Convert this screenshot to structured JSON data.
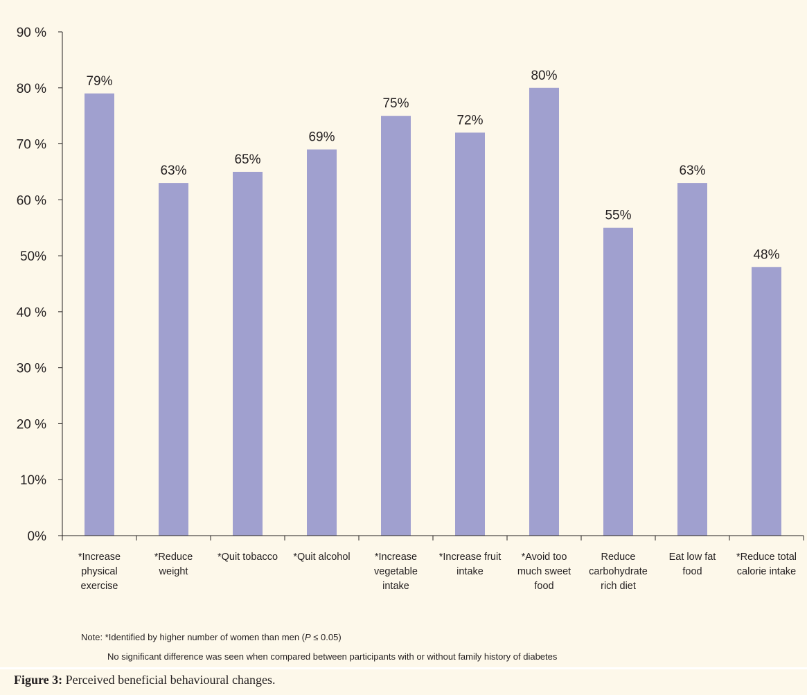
{
  "chart_data": {
    "type": "bar",
    "categories": [
      [
        "*Increase",
        "physical",
        "exercise"
      ],
      [
        "*Reduce",
        "weight"
      ],
      [
        "*Quit tobacco"
      ],
      [
        "*Quit alcohol"
      ],
      [
        "*Increase",
        "vegetable",
        "intake"
      ],
      [
        "*Increase fruit",
        "intake"
      ],
      [
        "*Avoid too",
        "much sweet",
        "food"
      ],
      [
        "Reduce",
        "carbohydrate",
        "rich diet"
      ],
      [
        "Eat low fat",
        "food"
      ],
      [
        "*Reduce total",
        "calorie intake"
      ]
    ],
    "values": [
      79,
      63,
      65,
      69,
      75,
      72,
      80,
      55,
      63,
      48
    ],
    "value_labels": [
      "79%",
      "63%",
      "65%",
      "69%",
      "75%",
      "72%",
      "80%",
      "55%",
      "63%",
      "48%"
    ],
    "yticks": [
      0,
      10,
      20,
      30,
      40,
      50,
      60,
      70,
      80,
      90
    ],
    "ytick_labels": [
      "0%",
      "10%",
      "20 %",
      "30 %",
      "40 %",
      "50%",
      "60 %",
      "70 %",
      "80 %",
      "90 %"
    ],
    "ylim": [
      0,
      90
    ],
    "bar_color": "#a0a0cf",
    "grid": false,
    "legend": "none"
  },
  "note": {
    "line1_prefix": "Note:   *Identified by higher number of women than  men (",
    "line1_p": "P",
    "line1_suffix": " ≤ 0.05)",
    "line2": "No significant difference was seen when compared between  participants with or without family history of diabetes"
  },
  "caption": {
    "label": "Figure 3:",
    "text": " Perceived beneficial behavioural changes."
  }
}
